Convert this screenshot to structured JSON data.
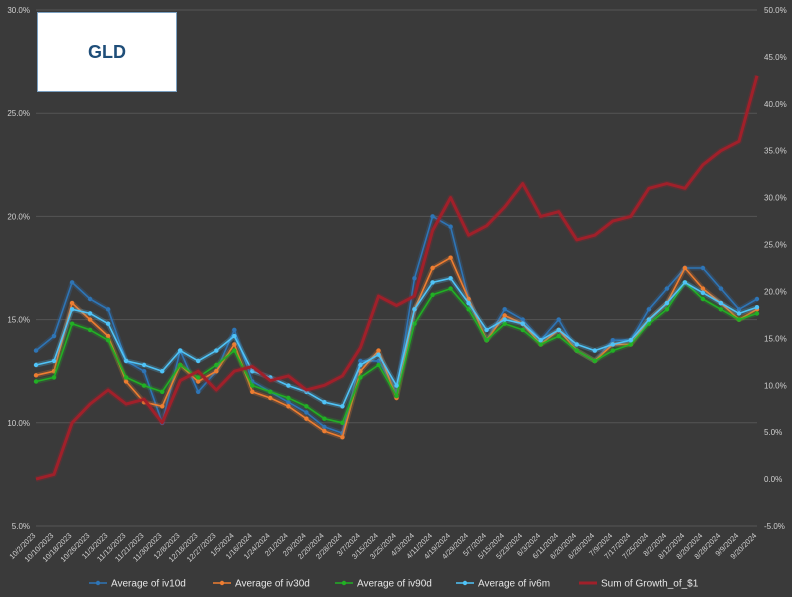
{
  "chart_data": {
    "type": "line",
    "title": "GLD",
    "y_left": {
      "min": 5.0,
      "max": 30.0,
      "ticks": [
        "5.0%",
        "10.0%",
        "15.0%",
        "20.0%",
        "25.0%",
        "30.0%"
      ]
    },
    "y_right": {
      "min": -5.0,
      "max": 50.0,
      "ticks": [
        "-5.0%",
        "0.0%",
        "5.0%",
        "10.0%",
        "15.0%",
        "20.0%",
        "25.0%",
        "30.0%",
        "35.0%",
        "40.0%",
        "45.0%",
        "50.0%"
      ]
    },
    "x_categories": [
      "10/2/2023",
      "10/10/2023",
      "10/18/2023",
      "10/26/2023",
      "11/3/2023",
      "11/13/2023",
      "11/21/2023",
      "11/30/2023",
      "12/8/2023",
      "12/18/2023",
      "12/27/2023",
      "1/5/2024",
      "1/16/2024",
      "1/24/2024",
      "2/1/2024",
      "2/9/2024",
      "2/20/2024",
      "2/28/2024",
      "3/7/2024",
      "3/15/2024",
      "3/25/2024",
      "4/3/2024",
      "4/11/2024",
      "4/19/2024",
      "4/29/2024",
      "5/7/2024",
      "5/15/2024",
      "5/23/2024",
      "6/3/2024",
      "6/11/2024",
      "6/20/2024",
      "6/28/2024",
      "7/9/2024",
      "7/17/2024",
      "7/25/2024",
      "8/2/2024",
      "8/12/2024",
      "8/20/2024",
      "8/28/2024",
      "9/9/2024",
      "9/20/2024"
    ],
    "series": [
      {
        "name": "Average of iv10d",
        "axis": "left",
        "color": "#2e75b6",
        "values": [
          13.5,
          14.2,
          16.8,
          16.0,
          15.5,
          13.0,
          12.5,
          10.0,
          13.5,
          11.5,
          12.5,
          14.5,
          12.0,
          11.5,
          11.0,
          10.5,
          9.8,
          9.5,
          13.0,
          13.0,
          11.5,
          17.0,
          20.0,
          19.5,
          16.0,
          14.0,
          15.5,
          15.0,
          14.0,
          15.0,
          13.5,
          13.0,
          14.0,
          14.0,
          15.5,
          16.5,
          17.5,
          17.5,
          16.5,
          15.5,
          16.0
        ]
      },
      {
        "name": "Average of iv30d",
        "axis": "left",
        "color": "#ed7d31",
        "values": [
          12.3,
          12.5,
          15.8,
          15.0,
          14.2,
          12.0,
          11.0,
          10.8,
          12.8,
          12.0,
          12.5,
          13.8,
          11.5,
          11.2,
          10.8,
          10.2,
          9.6,
          9.3,
          12.5,
          13.5,
          11.2,
          15.5,
          17.5,
          18.0,
          16.0,
          14.0,
          15.2,
          14.8,
          13.8,
          14.5,
          13.5,
          13.0,
          13.8,
          13.8,
          15.0,
          15.8,
          17.5,
          16.5,
          15.8,
          15.0,
          15.5
        ]
      },
      {
        "name": "Average of iv90d",
        "axis": "left",
        "color": "#21b024",
        "values": [
          12.0,
          12.2,
          14.8,
          14.5,
          14.0,
          12.2,
          11.8,
          11.5,
          12.8,
          12.2,
          12.8,
          13.5,
          11.8,
          11.5,
          11.2,
          10.8,
          10.2,
          10.0,
          12.2,
          12.8,
          11.3,
          14.8,
          16.2,
          16.5,
          15.5,
          14.0,
          14.8,
          14.5,
          13.8,
          14.2,
          13.5,
          13.0,
          13.5,
          13.8,
          14.8,
          15.5,
          16.8,
          16.0,
          15.5,
          15.0,
          15.3
        ]
      },
      {
        "name": "Average of iv6m",
        "axis": "left",
        "color": "#4fc3f7",
        "values": [
          12.8,
          13.0,
          15.5,
          15.3,
          14.8,
          13.0,
          12.8,
          12.5,
          13.5,
          13.0,
          13.5,
          14.2,
          12.5,
          12.2,
          11.8,
          11.5,
          11.0,
          10.8,
          12.8,
          13.3,
          11.8,
          15.5,
          16.8,
          17.0,
          15.8,
          14.5,
          15.0,
          14.8,
          14.0,
          14.5,
          13.8,
          13.5,
          13.8,
          14.0,
          15.0,
          15.8,
          16.8,
          16.3,
          15.8,
          15.3,
          15.6
        ]
      },
      {
        "name": "Sum of Growth_of_$1",
        "axis": "right",
        "color": "#a0202a",
        "values": [
          0.0,
          0.5,
          6.0,
          8.0,
          9.5,
          8.0,
          8.5,
          6.0,
          10.5,
          11.5,
          9.5,
          11.5,
          12.0,
          10.5,
          11.0,
          9.5,
          10.0,
          11.0,
          14.0,
          19.5,
          18.5,
          19.5,
          26.5,
          30.0,
          26.0,
          27.0,
          29.0,
          31.5,
          28.0,
          28.5,
          25.5,
          26.0,
          27.5,
          28.0,
          31.0,
          31.5,
          31.0,
          33.5,
          35.0,
          36.0,
          43.0
        ]
      }
    ],
    "legend_position": "bottom"
  }
}
